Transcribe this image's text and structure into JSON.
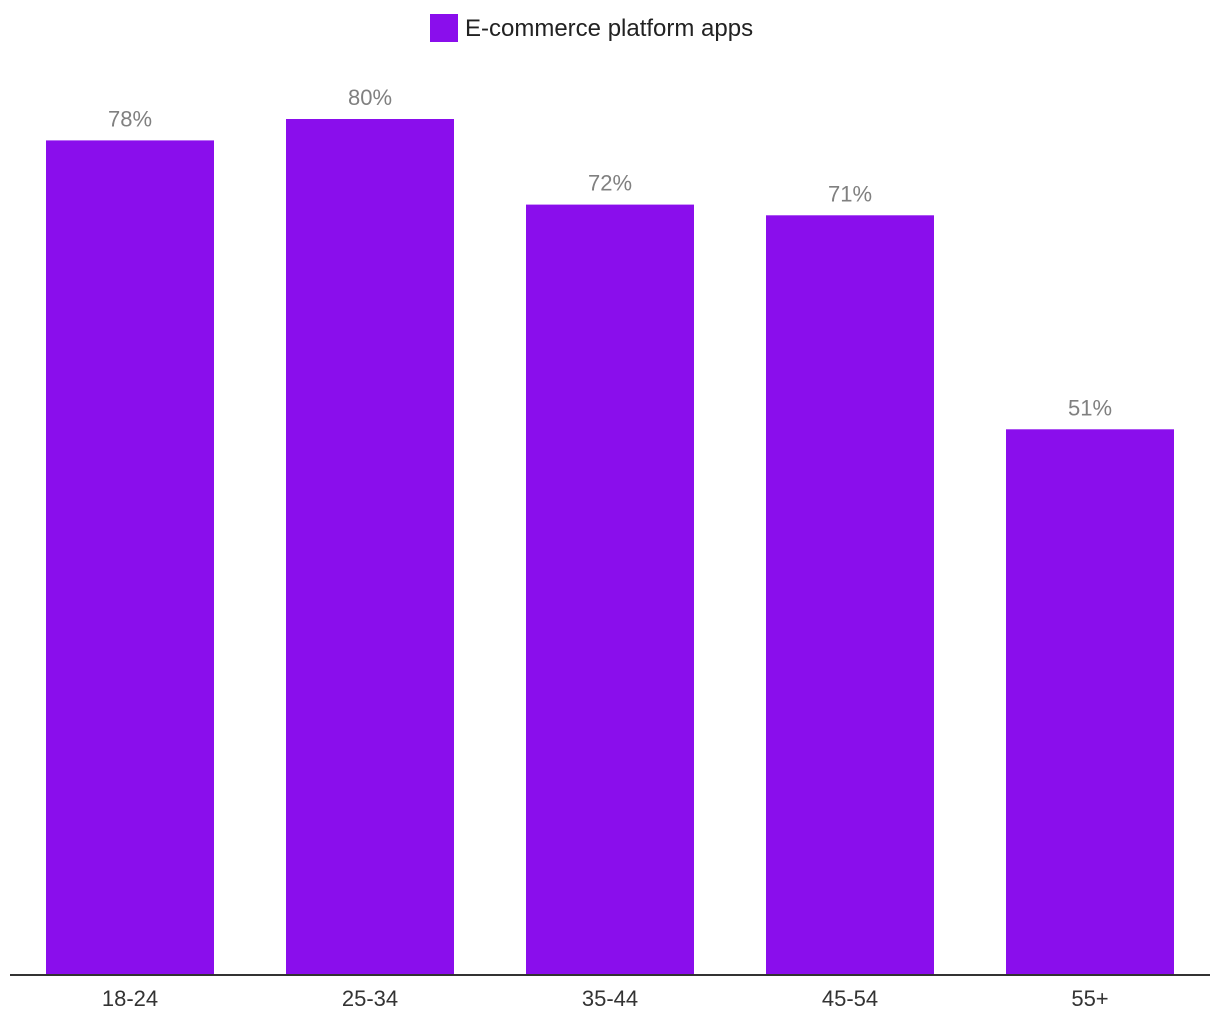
{
  "chart_data": {
    "type": "bar",
    "title": "",
    "xlabel": "",
    "ylabel": "",
    "categories": [
      "18-24",
      "25-34",
      "35-44",
      "45-54",
      "55+"
    ],
    "series": [
      {
        "name": "E-commerce platform apps",
        "values": [
          78,
          80,
          72,
          71,
          51
        ],
        "labels": [
          "78%",
          "80%",
          "72%",
          "71%",
          "51%"
        ]
      }
    ],
    "ylim": [
      0,
      100
    ],
    "grid": false,
    "legend": "top-center",
    "colors": {
      "bar": "#8a0eec",
      "axis": "#333333",
      "value_label": "#808080",
      "tick_label": "#333333"
    }
  }
}
